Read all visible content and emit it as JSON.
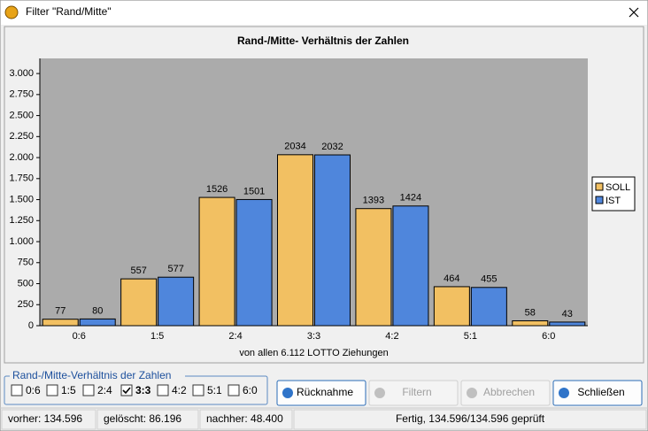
{
  "window": {
    "title": "Filter \"Rand/Mitte\""
  },
  "chart_data": {
    "type": "bar",
    "title": "Rand-/Mitte- Verhältnis der Zahlen",
    "x_label": "von allen 6.112 LOTTO Ziehungen",
    "categories": [
      "0:6",
      "1:5",
      "2:4",
      "3:3",
      "4:2",
      "5:1",
      "6:0"
    ],
    "series": [
      {
        "name": "SOLL",
        "color": "#f2c062",
        "values": [
          77,
          557,
          1526,
          2034,
          1393,
          464,
          58
        ]
      },
      {
        "name": "IST",
        "color": "#4f86dc",
        "values": [
          80,
          577,
          1501,
          2032,
          1424,
          455,
          43
        ]
      }
    ],
    "ylim": [
      0,
      3180
    ],
    "yticks": [
      0,
      250,
      500,
      750,
      {
        "value": 1000,
        "label": "1.000"
      },
      {
        "value": 1250,
        "label": "1.250"
      },
      {
        "value": 1500,
        "label": "1.500"
      },
      {
        "value": 1750,
        "label": "1.750"
      },
      {
        "value": 2000,
        "label": "2.000"
      },
      {
        "value": 2250,
        "label": "2.250"
      },
      {
        "value": 2500,
        "label": "2.500"
      },
      {
        "value": 2750,
        "label": "2.750"
      },
      {
        "value": 3000,
        "label": "3.000"
      }
    ],
    "grid": false,
    "legend": "right"
  },
  "filter_group": {
    "title": "Rand-/Mitte-Verhältnis der Zahlen",
    "options": [
      {
        "label": "0:6",
        "checked": false
      },
      {
        "label": "1:5",
        "checked": false
      },
      {
        "label": "2:4",
        "checked": false
      },
      {
        "label": "3:3",
        "checked": true
      },
      {
        "label": "4:2",
        "checked": false
      },
      {
        "label": "5:1",
        "checked": false
      },
      {
        "label": "6:0",
        "checked": false
      }
    ]
  },
  "buttons": [
    {
      "label": "Rücknahme",
      "enabled": true
    },
    {
      "label": "Filtern",
      "enabled": false
    },
    {
      "label": "Abbrechen",
      "enabled": false
    },
    {
      "label": "Schließen",
      "enabled": true
    }
  ],
  "status_bar": [
    "vorher: 134.596",
    "gelöscht: 86.196",
    "nachher: 48.400",
    "Fertig, 134.596/134.596 geprüft"
  ]
}
